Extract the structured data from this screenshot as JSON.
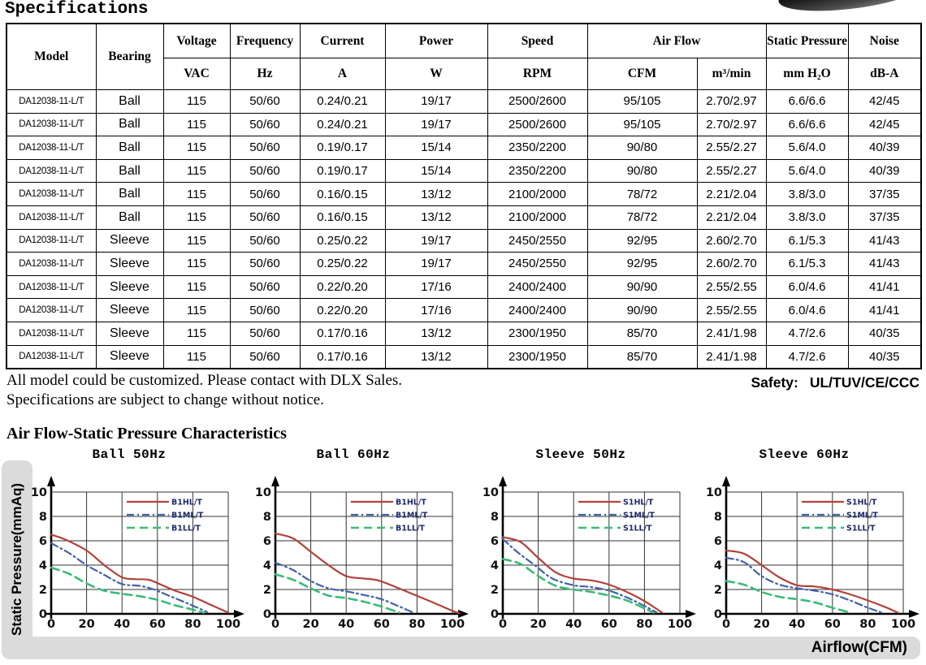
{
  "page": {
    "title": "Specifications",
    "notes": [
      "All model could be customized. Please contact with DLX Sales.",
      "Specifications are subject to change without notice."
    ],
    "safety_label": "Safety:",
    "safety_value": "UL/TUV/CE/CCC",
    "section_title": "Air Flow-Static Pressure Characteristics",
    "y_axis_bar_label": "Static Pressure(mmAq)",
    "x_axis_bar_label": "Airflow(CFM)"
  },
  "table": {
    "header": {
      "model": "Model",
      "bearing": "Bearing",
      "voltage": {
        "label": "Voltage",
        "unit": "VAC"
      },
      "frequency": {
        "label": "Frequency",
        "unit": "Hz"
      },
      "current": {
        "label": "Current",
        "unit": "A"
      },
      "power": {
        "label": "Power",
        "unit": "W"
      },
      "speed": {
        "label": "Speed",
        "unit": "RPM"
      },
      "airflow": {
        "label": "Air Flow",
        "unit_cfm": "CFM",
        "unit_m3": "m³/min"
      },
      "static_pressure": {
        "label": "Static Pressure",
        "unit": "mm H₂O"
      },
      "noise": {
        "label": "Noise",
        "unit": "dB-A"
      }
    },
    "rows": [
      [
        "DA12038-11-L/T",
        "Ball",
        "115",
        "50/60",
        "0.24/0.21",
        "19/17",
        "2500/2600",
        "95/105",
        "2.70/2.97",
        "6.6/6.6",
        "42/45"
      ],
      [
        "DA12038-11-L/T",
        "Ball",
        "115",
        "50/60",
        "0.24/0.21",
        "19/17",
        "2500/2600",
        "95/105",
        "2.70/2.97",
        "6.6/6.6",
        "42/45"
      ],
      [
        "DA12038-11-L/T",
        "Ball",
        "115",
        "50/60",
        "0.19/0.17",
        "15/14",
        "2350/2200",
        "90/80",
        "2.55/2.27",
        "5.6/4.0",
        "40/39"
      ],
      [
        "DA12038-11-L/T",
        "Ball",
        "115",
        "50/60",
        "0.19/0.17",
        "15/14",
        "2350/2200",
        "90/80",
        "2.55/2.27",
        "5.6/4.0",
        "40/39"
      ],
      [
        "DA12038-11-L/T",
        "Ball",
        "115",
        "50/60",
        "0.16/0.15",
        "13/12",
        "2100/2000",
        "78/72",
        "2.21/2.04",
        "3.8/3.0",
        "37/35"
      ],
      [
        "DA12038-11-L/T",
        "Ball",
        "115",
        "50/60",
        "0.16/0.15",
        "13/12",
        "2100/2000",
        "78/72",
        "2.21/2.04",
        "3.8/3.0",
        "37/35"
      ],
      [
        "DA12038-11-L/T",
        "Sleeve",
        "115",
        "50/60",
        "0.25/0.22",
        "19/17",
        "2450/2550",
        "92/95",
        "2.60/2.70",
        "6.1/5.3",
        "41/43"
      ],
      [
        "DA12038-11-L/T",
        "Sleeve",
        "115",
        "50/60",
        "0.25/0.22",
        "19/17",
        "2450/2550",
        "92/95",
        "2.60/2.70",
        "6.1/5.3",
        "41/43"
      ],
      [
        "DA12038-11-L/T",
        "Sleeve",
        "115",
        "50/60",
        "0.22/0.20",
        "17/16",
        "2400/2400",
        "90/90",
        "2.55/2.55",
        "6.0/4.6",
        "41/41"
      ],
      [
        "DA12038-11-L/T",
        "Sleeve",
        "115",
        "50/60",
        "0.22/0.20",
        "17/16",
        "2400/2400",
        "90/90",
        "2.55/2.55",
        "6.0/4.6",
        "41/41"
      ],
      [
        "DA12038-11-L/T",
        "Sleeve",
        "115",
        "50/60",
        "0.17/0.16",
        "13/12",
        "2300/1950",
        "85/70",
        "2.41/1.98",
        "4.7/2.6",
        "40/35"
      ],
      [
        "DA12038-11-L/T",
        "Sleeve",
        "115",
        "50/60",
        "0.17/0.16",
        "13/12",
        "2300/1950",
        "85/70",
        "2.41/1.98",
        "4.7/2.6",
        "40/35"
      ]
    ]
  },
  "chart_data": [
    {
      "type": "line",
      "title": "Ball 50Hz",
      "xlabel": "Airflow(CFM)",
      "ylabel": "Static Pressure(mmAq)",
      "xlim": [
        0,
        100
      ],
      "ylim": [
        0,
        10
      ],
      "x_ticks": [
        0,
        20,
        40,
        60,
        80,
        100
      ],
      "y_ticks": [
        0,
        2,
        4,
        6,
        8,
        10
      ],
      "grid": true,
      "legend_position": "top-right",
      "series": [
        {
          "name": "B1HL/T",
          "color": "#b2423a",
          "style": "solid",
          "points": [
            [
              0,
              6.5
            ],
            [
              8,
              6.1
            ],
            [
              20,
              5.2
            ],
            [
              30,
              4.0
            ],
            [
              40,
              3.0
            ],
            [
              48,
              2.85
            ],
            [
              55,
              2.8
            ],
            [
              62,
              2.4
            ],
            [
              70,
              1.9
            ],
            [
              80,
              1.4
            ],
            [
              90,
              0.75
            ],
            [
              100,
              0.1
            ]
          ]
        },
        {
          "name": "B1ML/T",
          "color": "#3f63a8",
          "style": "dashdot",
          "points": [
            [
              0,
              5.8
            ],
            [
              10,
              5.0
            ],
            [
              20,
              4.0
            ],
            [
              30,
              3.2
            ],
            [
              40,
              2.45
            ],
            [
              50,
              2.3
            ],
            [
              58,
              2.0
            ],
            [
              68,
              1.4
            ],
            [
              78,
              0.8
            ],
            [
              88,
              0.15
            ]
          ]
        },
        {
          "name": "B1LL/T",
          "color": "#3abb77",
          "style": "dashed",
          "points": [
            [
              0,
              3.8
            ],
            [
              10,
              3.3
            ],
            [
              20,
              2.5
            ],
            [
              30,
              1.9
            ],
            [
              40,
              1.65
            ],
            [
              50,
              1.45
            ],
            [
              60,
              1.15
            ],
            [
              70,
              0.7
            ],
            [
              80,
              0.35
            ],
            [
              86,
              0.1
            ]
          ]
        }
      ]
    },
    {
      "type": "line",
      "title": "Ball 60Hz",
      "xlabel": "Airflow(CFM)",
      "ylabel": "Static Pressure(mmAq)",
      "xlim": [
        0,
        100
      ],
      "ylim": [
        0,
        10
      ],
      "x_ticks": [
        0,
        20,
        40,
        60,
        80,
        100
      ],
      "y_ticks": [
        0,
        2,
        4,
        6,
        8,
        10
      ],
      "grid": true,
      "legend_position": "top-right",
      "series": [
        {
          "name": "B1HL/T",
          "color": "#b2423a",
          "style": "solid",
          "points": [
            [
              0,
              6.6
            ],
            [
              10,
              6.2
            ],
            [
              20,
              5.1
            ],
            [
              30,
              4.0
            ],
            [
              40,
              3.1
            ],
            [
              50,
              2.9
            ],
            [
              58,
              2.75
            ],
            [
              68,
              2.2
            ],
            [
              78,
              1.6
            ],
            [
              88,
              1.0
            ],
            [
              100,
              0.25
            ],
            [
              104,
              0.05
            ]
          ]
        },
        {
          "name": "B1ML/T",
          "color": "#3f63a8",
          "style": "dashdot",
          "points": [
            [
              0,
              4.2
            ],
            [
              10,
              3.6
            ],
            [
              20,
              2.7
            ],
            [
              30,
              2.1
            ],
            [
              40,
              1.85
            ],
            [
              50,
              1.55
            ],
            [
              60,
              1.2
            ],
            [
              70,
              0.6
            ],
            [
              78,
              0.1
            ]
          ]
        },
        {
          "name": "B1LL/T",
          "color": "#3abb77",
          "style": "dashed",
          "points": [
            [
              0,
              3.25
            ],
            [
              10,
              2.8
            ],
            [
              20,
              2.1
            ],
            [
              30,
              1.5
            ],
            [
              40,
              1.3
            ],
            [
              50,
              1.0
            ],
            [
              60,
              0.6
            ],
            [
              70,
              0.1
            ]
          ]
        }
      ]
    },
    {
      "type": "line",
      "title": "Sleeve 50Hz",
      "xlabel": "Airflow(CFM)",
      "ylabel": "Static Pressure(mmAq)",
      "xlim": [
        0,
        100
      ],
      "ylim": [
        0,
        10
      ],
      "x_ticks": [
        0,
        20,
        40,
        60,
        80,
        100
      ],
      "y_ticks": [
        0,
        2,
        4,
        6,
        8,
        10
      ],
      "grid": true,
      "legend_position": "top-right",
      "series": [
        {
          "name": "S1HL/T",
          "color": "#b2423a",
          "style": "solid",
          "points": [
            [
              0,
              6.3
            ],
            [
              10,
              5.9
            ],
            [
              20,
              4.6
            ],
            [
              30,
              3.4
            ],
            [
              40,
              2.9
            ],
            [
              50,
              2.75
            ],
            [
              60,
              2.4
            ],
            [
              70,
              1.8
            ],
            [
              80,
              1.05
            ],
            [
              90,
              0.1
            ]
          ]
        },
        {
          "name": "S1ML/T",
          "color": "#3f63a8",
          "style": "dashdot",
          "points": [
            [
              0,
              6.15
            ],
            [
              8,
              5.1
            ],
            [
              18,
              4.0
            ],
            [
              28,
              2.9
            ],
            [
              40,
              2.35
            ],
            [
              50,
              2.2
            ],
            [
              60,
              1.9
            ],
            [
              70,
              1.35
            ],
            [
              80,
              0.65
            ],
            [
              87,
              0.1
            ]
          ]
        },
        {
          "name": "S1LL/T",
          "color": "#3abb77",
          "style": "dashed",
          "points": [
            [
              0,
              4.5
            ],
            [
              10,
              4.1
            ],
            [
              20,
              3.1
            ],
            [
              30,
              2.3
            ],
            [
              40,
              2.0
            ],
            [
              50,
              1.8
            ],
            [
              60,
              1.5
            ],
            [
              70,
              1.1
            ],
            [
              80,
              0.45
            ],
            [
              85,
              0.1
            ]
          ]
        }
      ]
    },
    {
      "type": "line",
      "title": "Sleeve 60Hz",
      "xlabel": "Airflow(CFM)",
      "ylabel": "Static Pressure(mmAq)",
      "xlim": [
        0,
        100
      ],
      "ylim": [
        0,
        10
      ],
      "x_ticks": [
        0,
        20,
        40,
        60,
        80,
        100
      ],
      "y_ticks": [
        0,
        2,
        4,
        6,
        8,
        10
      ],
      "grid": true,
      "legend_position": "top-right",
      "series": [
        {
          "name": "S1HL/T",
          "color": "#b2423a",
          "style": "solid",
          "points": [
            [
              0,
              5.2
            ],
            [
              10,
              4.95
            ],
            [
              20,
              4.0
            ],
            [
              30,
              3.0
            ],
            [
              40,
              2.35
            ],
            [
              50,
              2.25
            ],
            [
              60,
              2.0
            ],
            [
              70,
              1.6
            ],
            [
              80,
              1.1
            ],
            [
              90,
              0.55
            ],
            [
              97,
              0.1
            ]
          ]
        },
        {
          "name": "S1ML/T",
          "color": "#3f63a8",
          "style": "dashdot",
          "points": [
            [
              0,
              4.6
            ],
            [
              10,
              4.25
            ],
            [
              20,
              3.1
            ],
            [
              30,
              2.4
            ],
            [
              40,
              2.1
            ],
            [
              50,
              1.9
            ],
            [
              60,
              1.6
            ],
            [
              70,
              1.1
            ],
            [
              80,
              0.5
            ],
            [
              88,
              0.1
            ]
          ]
        },
        {
          "name": "S1LL/T",
          "color": "#3abb77",
          "style": "dashed",
          "points": [
            [
              0,
              2.7
            ],
            [
              10,
              2.4
            ],
            [
              20,
              1.8
            ],
            [
              30,
              1.4
            ],
            [
              40,
              1.2
            ],
            [
              50,
              0.95
            ],
            [
              60,
              0.5
            ],
            [
              70,
              0.1
            ]
          ]
        }
      ]
    }
  ]
}
